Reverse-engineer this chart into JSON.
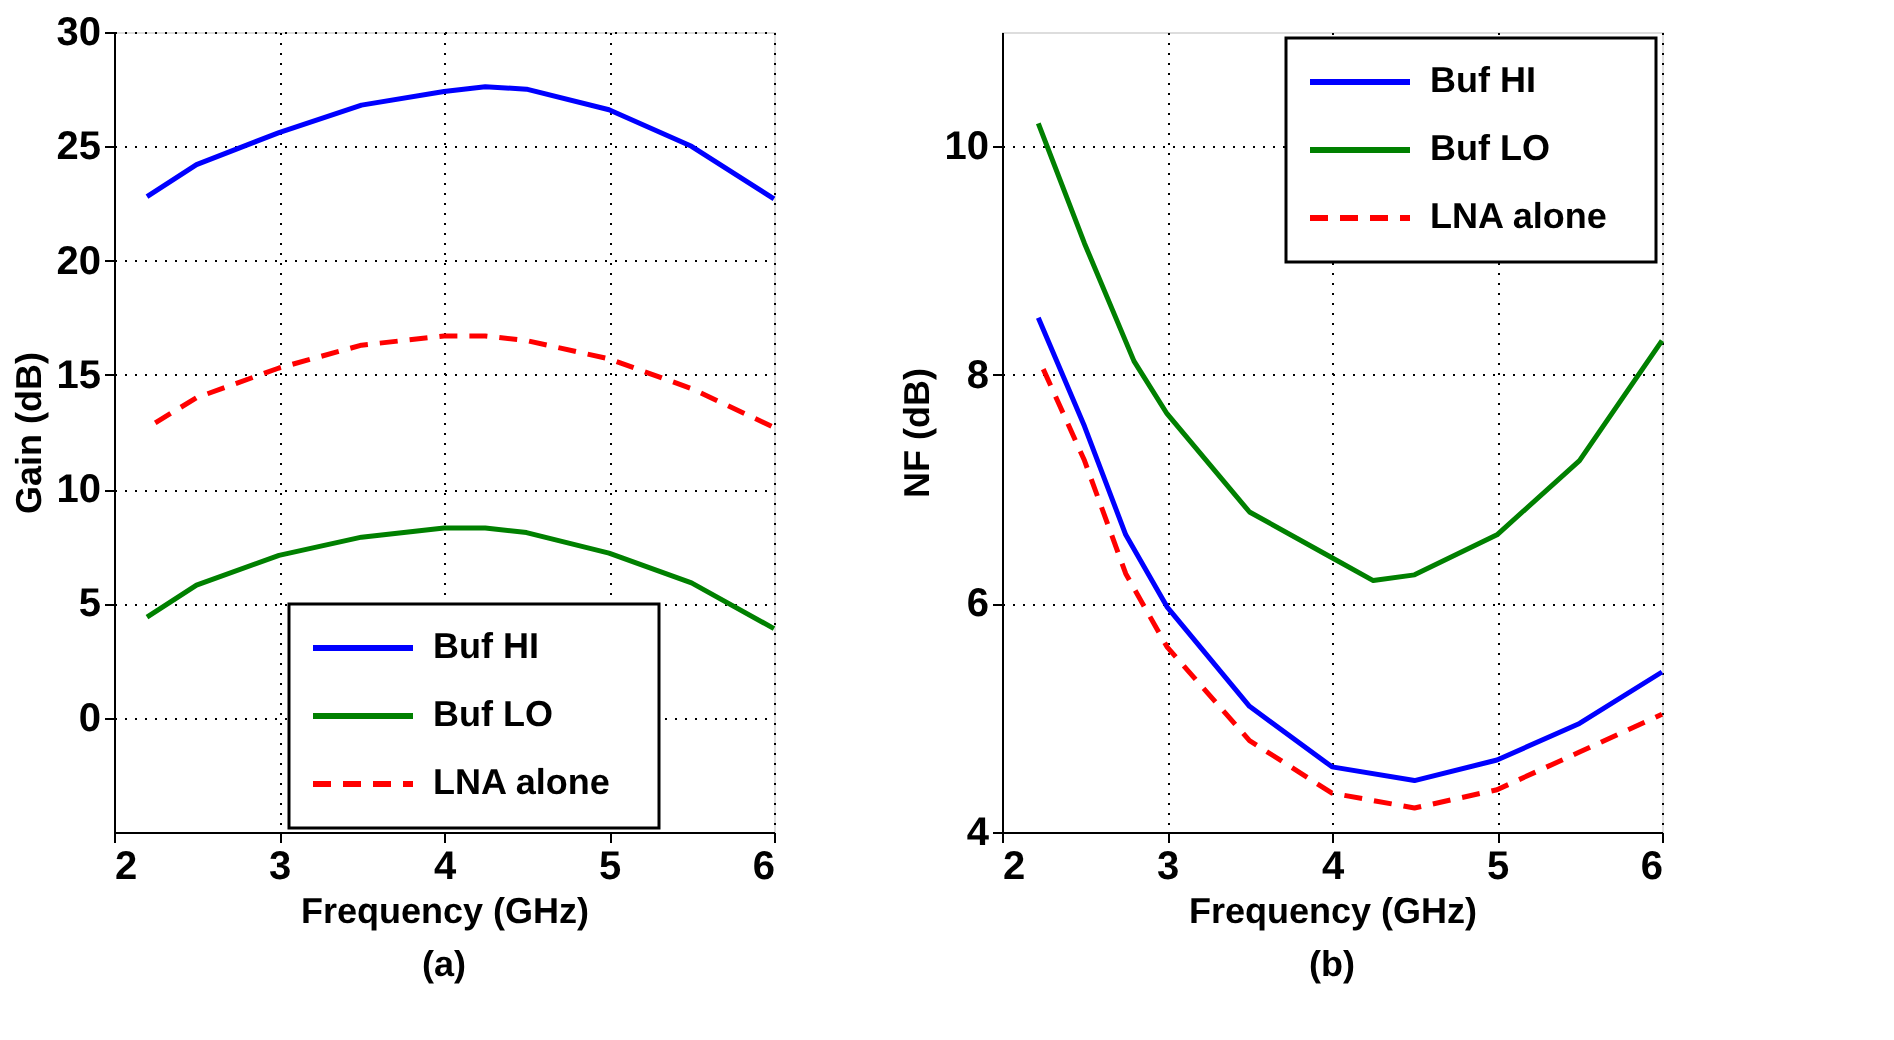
{
  "chart_data": [
    {
      "type": "line",
      "xlabel": "Frequency (GHz)",
      "ylabel": "Gain (dB)",
      "annotations": [
        "(a)"
      ],
      "xlim": [
        2,
        6
      ],
      "xticks": [
        2,
        3,
        4,
        5,
        6
      ],
      "ylim": [
        -5,
        30
      ],
      "yticks": [
        0,
        5,
        10,
        15,
        20,
        25,
        30
      ],
      "grid": true,
      "legend": "bottom",
      "series": [
        {
          "name": "Buf HI",
          "color": "#0000ff",
          "line_style": "solid",
          "x": [
            2.2,
            2.5,
            3,
            3.5,
            4,
            4.25,
            4.5,
            5,
            5.5,
            6
          ],
          "values": [
            22.8,
            24.2,
            25.6,
            26.8,
            27.4,
            27.6,
            27.5,
            26.6,
            25,
            22.7
          ]
        },
        {
          "name": "Buf LO",
          "color": "#008000",
          "line_style": "solid",
          "x": [
            2.2,
            2.5,
            3,
            3.5,
            4,
            4.25,
            4.5,
            5,
            5.5,
            6
          ],
          "values": [
            4.4,
            5.8,
            7.1,
            7.9,
            8.3,
            8.3,
            8.1,
            7.2,
            5.9,
            3.9
          ]
        },
        {
          "name": "LNA alone",
          "color": "#ff0000",
          "line_style": "dashed",
          "x": [
            2.25,
            2.5,
            3,
            3.5,
            4,
            4.25,
            4.5,
            5,
            5.5,
            6
          ],
          "values": [
            12.9,
            14,
            15.3,
            16.3,
            16.7,
            16.7,
            16.5,
            15.7,
            14.4,
            12.7
          ]
        }
      ]
    },
    {
      "type": "line",
      "xlabel": "Frequency (GHz)",
      "ylabel": "NF (dB)",
      "annotations": [
        "(b)"
      ],
      "xlim": [
        2,
        6
      ],
      "xticks": [
        2,
        3,
        4,
        5,
        6
      ],
      "ylim": [
        4,
        11
      ],
      "yticks": [
        4,
        6,
        8,
        10
      ],
      "grid": true,
      "legend": "top right",
      "series": [
        {
          "name": "Buf HI",
          "color": "#0000ff",
          "line_style": "solid",
          "x": [
            2.22,
            2.5,
            2.75,
            3,
            3.5,
            4,
            4.5,
            5,
            5.5,
            6
          ],
          "values": [
            8.5,
            7.55,
            6.6,
            5.97,
            5.1,
            4.57,
            4.45,
            4.63,
            4.95,
            5.4
          ]
        },
        {
          "name": "Buf LO",
          "color": "#008000",
          "line_style": "solid",
          "x": [
            2.22,
            2.5,
            2.8,
            3,
            3.5,
            4,
            4.25,
            4.5,
            5,
            5.5,
            6
          ],
          "values": [
            10.2,
            9.15,
            8.12,
            7.66,
            6.8,
            6.4,
            6.2,
            6.25,
            6.6,
            7.25,
            8.3
          ]
        },
        {
          "name": "LNA alone",
          "color": "#ff0000",
          "line_style": "dashed",
          "x": [
            2.25,
            2.5,
            2.75,
            3,
            3.5,
            4,
            4.5,
            5,
            5.5,
            6
          ],
          "values": [
            8.05,
            7.25,
            6.26,
            5.62,
            4.8,
            4.34,
            4.21,
            4.37,
            4.7,
            5.03
          ]
        }
      ]
    }
  ]
}
